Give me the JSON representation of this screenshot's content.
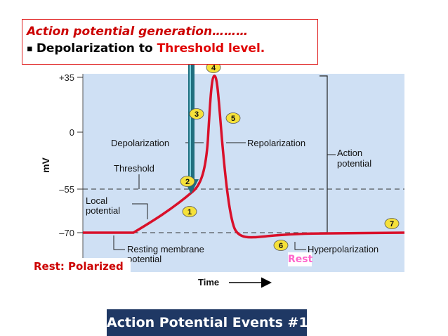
{
  "callout": {
    "title": "Action potential generation………",
    "bullet": "▪",
    "line_prefix": "Depolarization to ",
    "line_highlight": "Threshold level."
  },
  "diagram": {
    "y_axis_label": "mV",
    "y_ticks": [
      "+35",
      "0",
      "–55",
      "–70"
    ],
    "x_axis_label": "Time",
    "labels": {
      "depolarization": "Depolarization",
      "repolarization": "Repolarization",
      "threshold": "Threshold",
      "local_potential_1": "Local",
      "local_potential_2": "potential",
      "action_potential_1": "Action",
      "action_potential_2": "potential",
      "resting_1": "Resting membrane",
      "resting_2": "potential",
      "hyperpolarization": "Hyperpolarization"
    },
    "markers": [
      "1",
      "2",
      "3",
      "4",
      "5",
      "6",
      "7"
    ],
    "colors": {
      "panel": "#cfe0f4",
      "trace": "#d9102a",
      "marker_fill": "#f5e13a",
      "arrow": "#1f6f7f"
    }
  },
  "rest_label": "Rest: Polarized",
  "rest_pink": "Rest",
  "footer_title": "Action Potential Events #1"
}
